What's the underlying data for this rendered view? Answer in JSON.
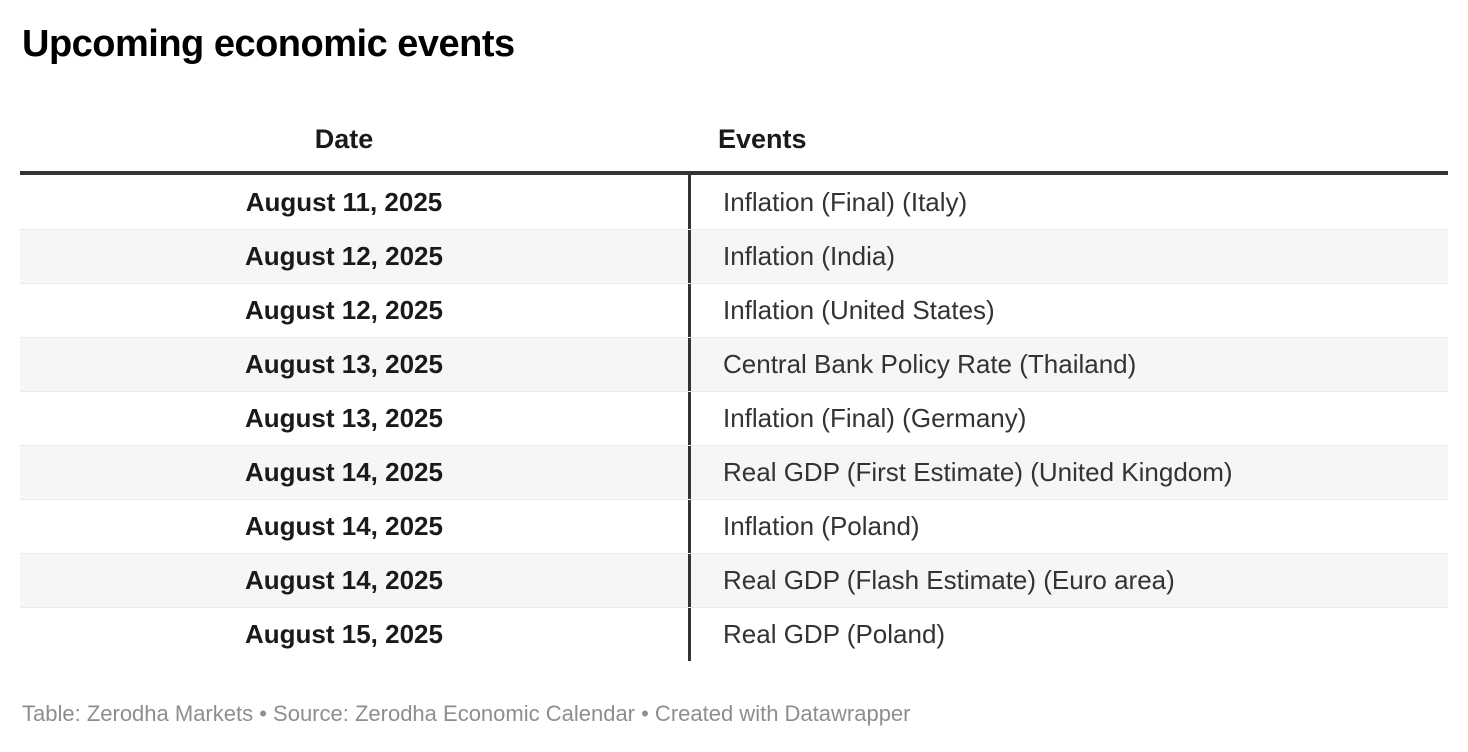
{
  "title": "Upcoming economic events",
  "chart_data": {
    "type": "table",
    "title": "Upcoming economic events",
    "columns": [
      "Date",
      "Events"
    ],
    "rows": [
      {
        "date": "August 11, 2025",
        "event": "Inflation (Final) (Italy)"
      },
      {
        "date": "August 12, 2025",
        "event": "Inflation (India)"
      },
      {
        "date": "August 12, 2025",
        "event": "Inflation (United States)"
      },
      {
        "date": "August 13, 2025",
        "event": "Central Bank Policy Rate (Thailand)"
      },
      {
        "date": "August 13, 2025",
        "event": "Inflation (Final) (Germany)"
      },
      {
        "date": "August 14, 2025",
        "event": "Real GDP (First Estimate) (United Kingdom)"
      },
      {
        "date": "August 14, 2025",
        "event": "Inflation (Poland)"
      },
      {
        "date": "August 14, 2025",
        "event": "Real GDP (Flash Estimate) (Euro area)"
      },
      {
        "date": "August 15, 2025",
        "event": "Real GDP (Poland)"
      }
    ],
    "layout_hints": {
      "striped_rows": true,
      "date_column_align": "center",
      "events_column_align": "left"
    }
  },
  "footer": {
    "credit_line": "Table: Zerodha Markets • Source: Zerodha Economic Calendar • Created with Datawrapper"
  },
  "colors": {
    "header_rule": "#333333",
    "column_divider": "#333333",
    "stripe_background": "#f6f6f6",
    "row_separator": "#ebebeb",
    "heading_text": "#1a1a1a",
    "body_text": "#333333",
    "footer_text": "#8e8e8e",
    "page_background": "#ffffff"
  }
}
